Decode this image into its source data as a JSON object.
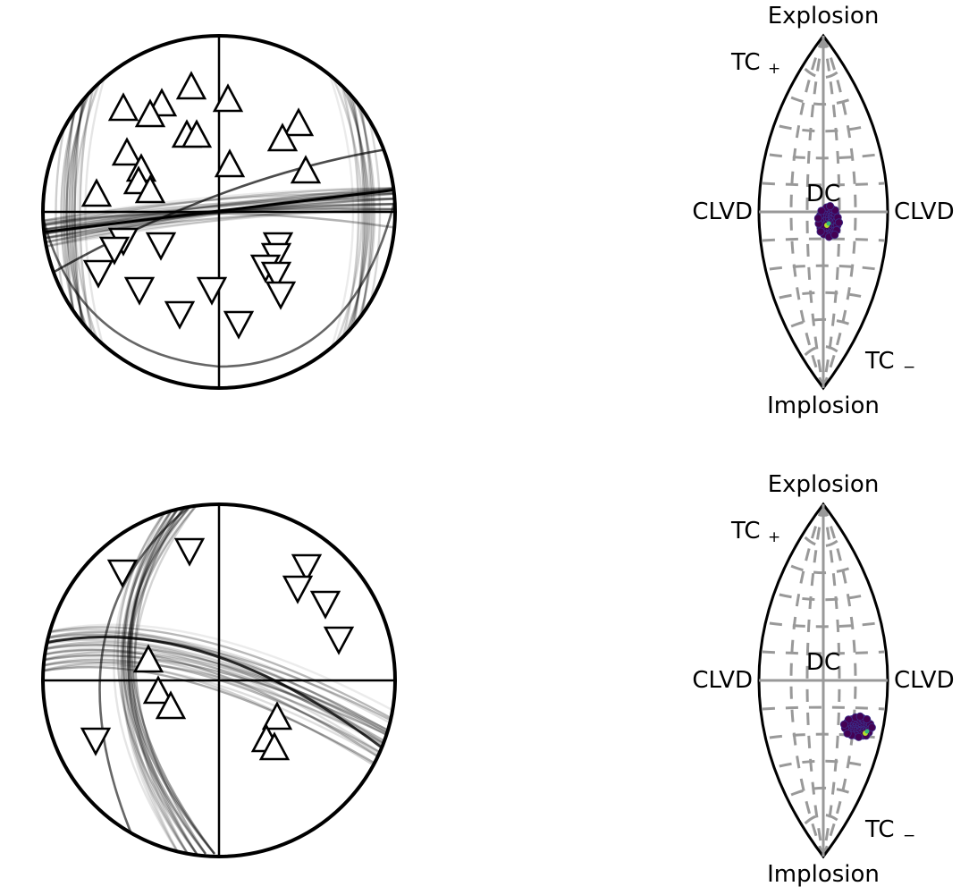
{
  "labels": {
    "explosion": "Explosion",
    "implosion": "Implosion",
    "clvd": "CLVD",
    "dc": "DC",
    "tc": "TC",
    "tc_plus": "+",
    "tc_minus": "−"
  },
  "colors": {
    "ink": "#000000",
    "grid": "#999999",
    "cluster": "#440154",
    "cluster_edge": "#3b2f8a",
    "best": "#b5de2b",
    "best2": "#35b779"
  },
  "beachballs": [
    {
      "id": "top",
      "up_polarities": 20,
      "down_polarities": 16
    },
    {
      "id": "bottom",
      "up_polarities": 8,
      "down_polarities": 8
    }
  ],
  "lunes": [
    {
      "id": "top"
    },
    {
      "id": "bottom"
    }
  ]
}
